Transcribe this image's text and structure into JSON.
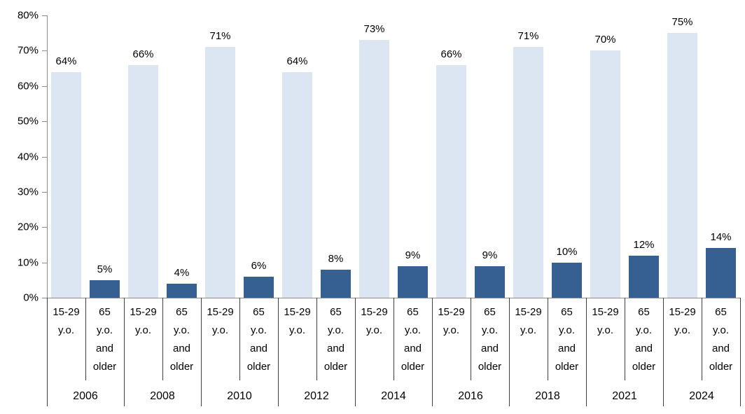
{
  "chart_data": {
    "type": "bar",
    "title": "",
    "xlabel": "",
    "ylabel": "",
    "categories": [
      "2006",
      "2008",
      "2010",
      "2012",
      "2014",
      "2016",
      "2018",
      "2021",
      "2024"
    ],
    "subcategory_labels": [
      {
        "name": "15-29 y.o.",
        "lines": [
          "15-29",
          "y.o."
        ]
      },
      {
        "name": "65 y.o. and older",
        "lines": [
          "65",
          "y.o.",
          "and",
          "older"
        ]
      }
    ],
    "series": [
      {
        "name": "15-29 y.o.",
        "color": "#dce6f2",
        "values": [
          64,
          66,
          71,
          64,
          73,
          66,
          71,
          70,
          75
        ]
      },
      {
        "name": "65 y.o. and older",
        "color": "#366092",
        "values": [
          5,
          4,
          6,
          8,
          9,
          9,
          10,
          12,
          14
        ]
      }
    ],
    "value_suffix": "%",
    "value_labels_shown": true,
    "ylim": [
      0,
      80
    ],
    "ytick_labels": [
      "0%",
      "10%",
      "20%",
      "30%",
      "40%",
      "50%",
      "60%",
      "70%",
      "80%"
    ],
    "grid": false,
    "legend_position": "none",
    "colors": {
      "background": "#ffffff",
      "axis_line": "#8c8c8c",
      "category_table_line": "#404040",
      "text": "#000000"
    }
  }
}
